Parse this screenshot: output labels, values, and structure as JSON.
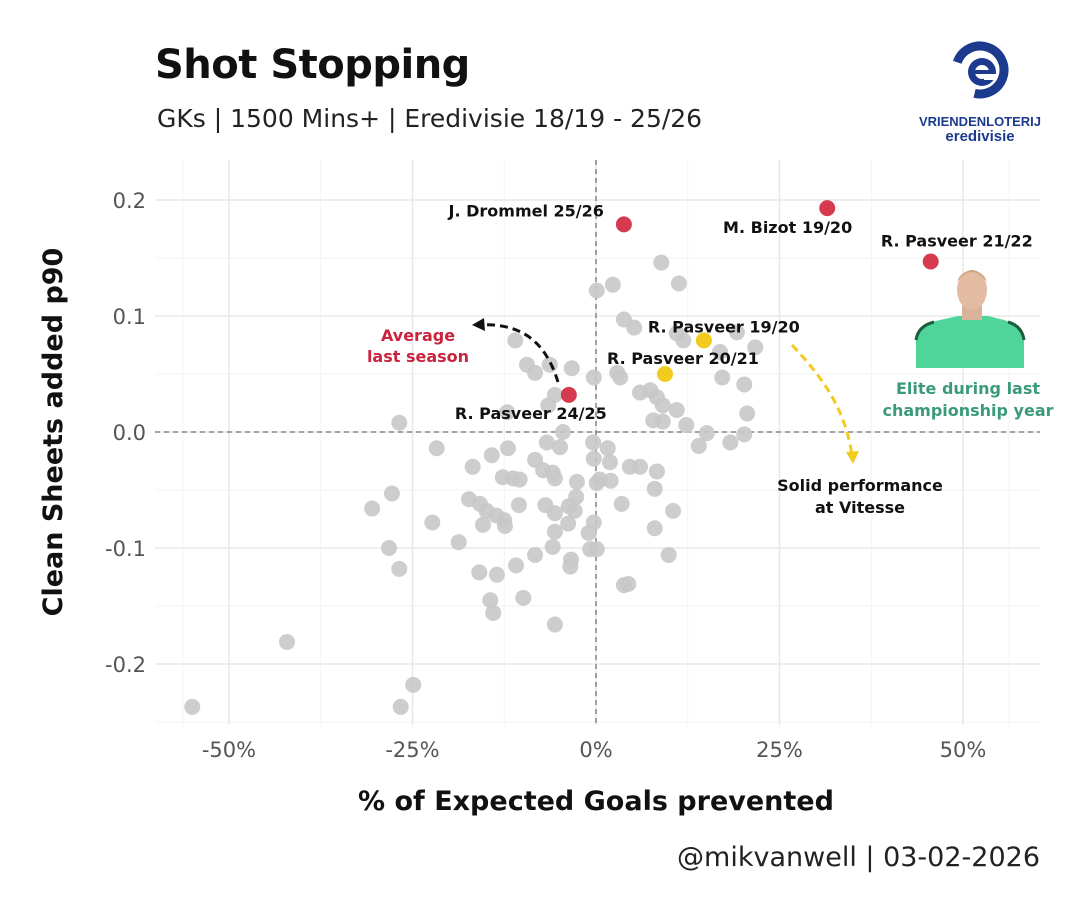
{
  "header": {
    "title": "Shot Stopping",
    "subtitle": "GKs | 1500 Mins+ | Eredivisie 18/19 - 25/26"
  },
  "logo": {
    "line1": "VRIENDENLOTERIJ",
    "line2": "eredivisie",
    "ring_text": "VRIENDENLOTERIJ",
    "color": "#1c3b8f"
  },
  "footer": "@mikvanwell | 03-02-2026",
  "annotations": {
    "average_line1": "Average",
    "average_line2": "last season",
    "average_color": "#c9243f",
    "vitesse_line1": "Solid performance",
    "vitesse_line2": "at Vitesse",
    "elite_line1": "Elite during last",
    "elite_line2": "championship year",
    "elite_color": "#3a9b78",
    "photo": "goalkeeper-photo"
  },
  "chart_data": {
    "type": "scatter",
    "title": "Shot Stopping",
    "subtitle": "GKs | 1500 Mins+ | Eredivisie 18/19 - 25/26",
    "xlabel": "% of Expected Goals prevented",
    "ylabel": "Clean Sheets added p90",
    "xlim": [
      -60,
      60
    ],
    "ylim": [
      -0.253,
      0.234
    ],
    "x_ticks": [
      -50,
      -25,
      0,
      25,
      50
    ],
    "x_tick_labels": [
      "-50%",
      "-25%",
      "0%",
      "25%",
      "50%"
    ],
    "y_ticks": [
      0.2,
      0.1,
      0.0,
      -0.1,
      -0.2
    ],
    "y_tick_labels": [
      "0.2",
      "0.1",
      "0.0",
      "-0.1",
      "-0.2"
    ],
    "grid": true,
    "reference_lines": {
      "x": 0,
      "y": 0
    },
    "colors": {
      "others": "#c8c8c8",
      "highlight_red": "#d63a4e",
      "highlight_yellow": "#f3ca1e"
    },
    "others": [
      [
        8.9,
        0.146
      ],
      [
        2.3,
        0.127
      ],
      [
        11.3,
        0.128
      ],
      [
        0.1,
        0.122
      ],
      [
        3.8,
        0.097
      ],
      [
        5.2,
        0.09
      ],
      [
        11.0,
        0.085
      ],
      [
        16.9,
        0.069
      ],
      [
        11.9,
        0.079
      ],
      [
        19.2,
        0.086
      ],
      [
        21.7,
        0.073
      ],
      [
        -0.3,
        0.047
      ],
      [
        2.9,
        0.051
      ],
      [
        3.3,
        0.047
      ],
      [
        17.2,
        0.047
      ],
      [
        20.2,
        0.041
      ],
      [
        6.0,
        0.034
      ],
      [
        7.4,
        0.036
      ],
      [
        8.3,
        0.03
      ],
      [
        9.1,
        0.023
      ],
      [
        11.0,
        0.019
      ],
      [
        20.6,
        0.016
      ],
      [
        7.8,
        0.01
      ],
      [
        9.1,
        0.009
      ],
      [
        12.3,
        0.006
      ],
      [
        15.1,
        -0.001
      ],
      [
        14.0,
        -0.012
      ],
      [
        18.3,
        -0.009
      ],
      [
        20.2,
        -0.002
      ],
      [
        -0.4,
        -0.009
      ],
      [
        1.6,
        -0.014
      ],
      [
        1.9,
        -0.026
      ],
      [
        4.6,
        -0.03
      ],
      [
        6.0,
        -0.03
      ],
      [
        8.3,
        -0.034
      ],
      [
        0.5,
        -0.041
      ],
      [
        -11.0,
        0.079
      ],
      [
        -9.4,
        0.058
      ],
      [
        -8.3,
        0.051
      ],
      [
        -6.3,
        0.058
      ],
      [
        -3.3,
        0.055
      ],
      [
        -5.6,
        0.032
      ],
      [
        -6.5,
        0.023
      ],
      [
        -12.1,
        0.017
      ],
      [
        -26.8,
        0.008
      ],
      [
        -4.5,
        0.0
      ],
      [
        -6.7,
        -0.009
      ],
      [
        -4.9,
        -0.013
      ],
      [
        -21.7,
        -0.014
      ],
      [
        -14.2,
        -0.02
      ],
      [
        -12.0,
        -0.014
      ],
      [
        -8.3,
        -0.024
      ],
      [
        -16.8,
        -0.03
      ],
      [
        -7.2,
        -0.033
      ],
      [
        -5.9,
        -0.035
      ],
      [
        -12.7,
        -0.039
      ],
      [
        -11.3,
        -0.04
      ],
      [
        -2.6,
        -0.043
      ],
      [
        0.1,
        -0.044
      ],
      [
        -0.3,
        -0.023
      ],
      [
        8.0,
        -0.049
      ],
      [
        -10.4,
        -0.041
      ],
      [
        -5.6,
        -0.04
      ],
      [
        2.0,
        -0.042
      ],
      [
        -27.8,
        -0.053
      ],
      [
        -30.5,
        -0.066
      ],
      [
        -17.3,
        -0.058
      ],
      [
        -15.8,
        -0.062
      ],
      [
        -14.9,
        -0.068
      ],
      [
        -13.6,
        -0.072
      ],
      [
        -12.5,
        -0.076
      ],
      [
        -10.5,
        -0.063
      ],
      [
        -6.9,
        -0.063
      ],
      [
        -5.6,
        -0.07
      ],
      [
        -3.7,
        -0.064
      ],
      [
        -2.7,
        -0.056
      ],
      [
        -2.9,
        -0.068
      ],
      [
        3.5,
        -0.062
      ],
      [
        10.5,
        -0.068
      ],
      [
        -22.3,
        -0.078
      ],
      [
        -15.4,
        -0.08
      ],
      [
        -12.4,
        -0.081
      ],
      [
        -3.8,
        -0.079
      ],
      [
        -0.3,
        -0.078
      ],
      [
        -5.6,
        -0.086
      ],
      [
        -1.0,
        -0.087
      ],
      [
        8.0,
        -0.083
      ],
      [
        -28.2,
        -0.1
      ],
      [
        -18.7,
        -0.095
      ],
      [
        -5.9,
        -0.099
      ],
      [
        -0.8,
        -0.101
      ],
      [
        0.1,
        -0.101
      ],
      [
        -8.3,
        -0.106
      ],
      [
        -3.4,
        -0.11
      ],
      [
        -3.5,
        -0.116
      ],
      [
        9.9,
        -0.106
      ],
      [
        -26.8,
        -0.118
      ],
      [
        -15.9,
        -0.121
      ],
      [
        -13.5,
        -0.123
      ],
      [
        -10.9,
        -0.115
      ],
      [
        3.8,
        -0.132
      ],
      [
        4.4,
        -0.131
      ],
      [
        -14.4,
        -0.145
      ],
      [
        -14.0,
        -0.156
      ],
      [
        -9.9,
        -0.143
      ],
      [
        -5.6,
        -0.166
      ],
      [
        -42.1,
        -0.181
      ],
      [
        -24.9,
        -0.218
      ],
      [
        -26.6,
        -0.237
      ],
      [
        -55.0,
        -0.237
      ]
    ],
    "highlighted": [
      {
        "label": "J. Drommel 25/26",
        "x": 3.8,
        "y": 0.179,
        "color": "red"
      },
      {
        "label": "M. Bizot 19/20",
        "x": 31.5,
        "y": 0.193,
        "color": "red"
      },
      {
        "label": "R. Pasveer 21/22",
        "x": 45.6,
        "y": 0.147,
        "color": "red"
      },
      {
        "label": "R. Pasveer 24/25",
        "x": -3.7,
        "y": 0.032,
        "color": "red"
      },
      {
        "label": "R. Pasveer 19/20",
        "x": 14.7,
        "y": 0.079,
        "color": "yellow"
      },
      {
        "label": "R. Pasveer 20/21",
        "x": 9.4,
        "y": 0.05,
        "color": "yellow"
      }
    ]
  }
}
